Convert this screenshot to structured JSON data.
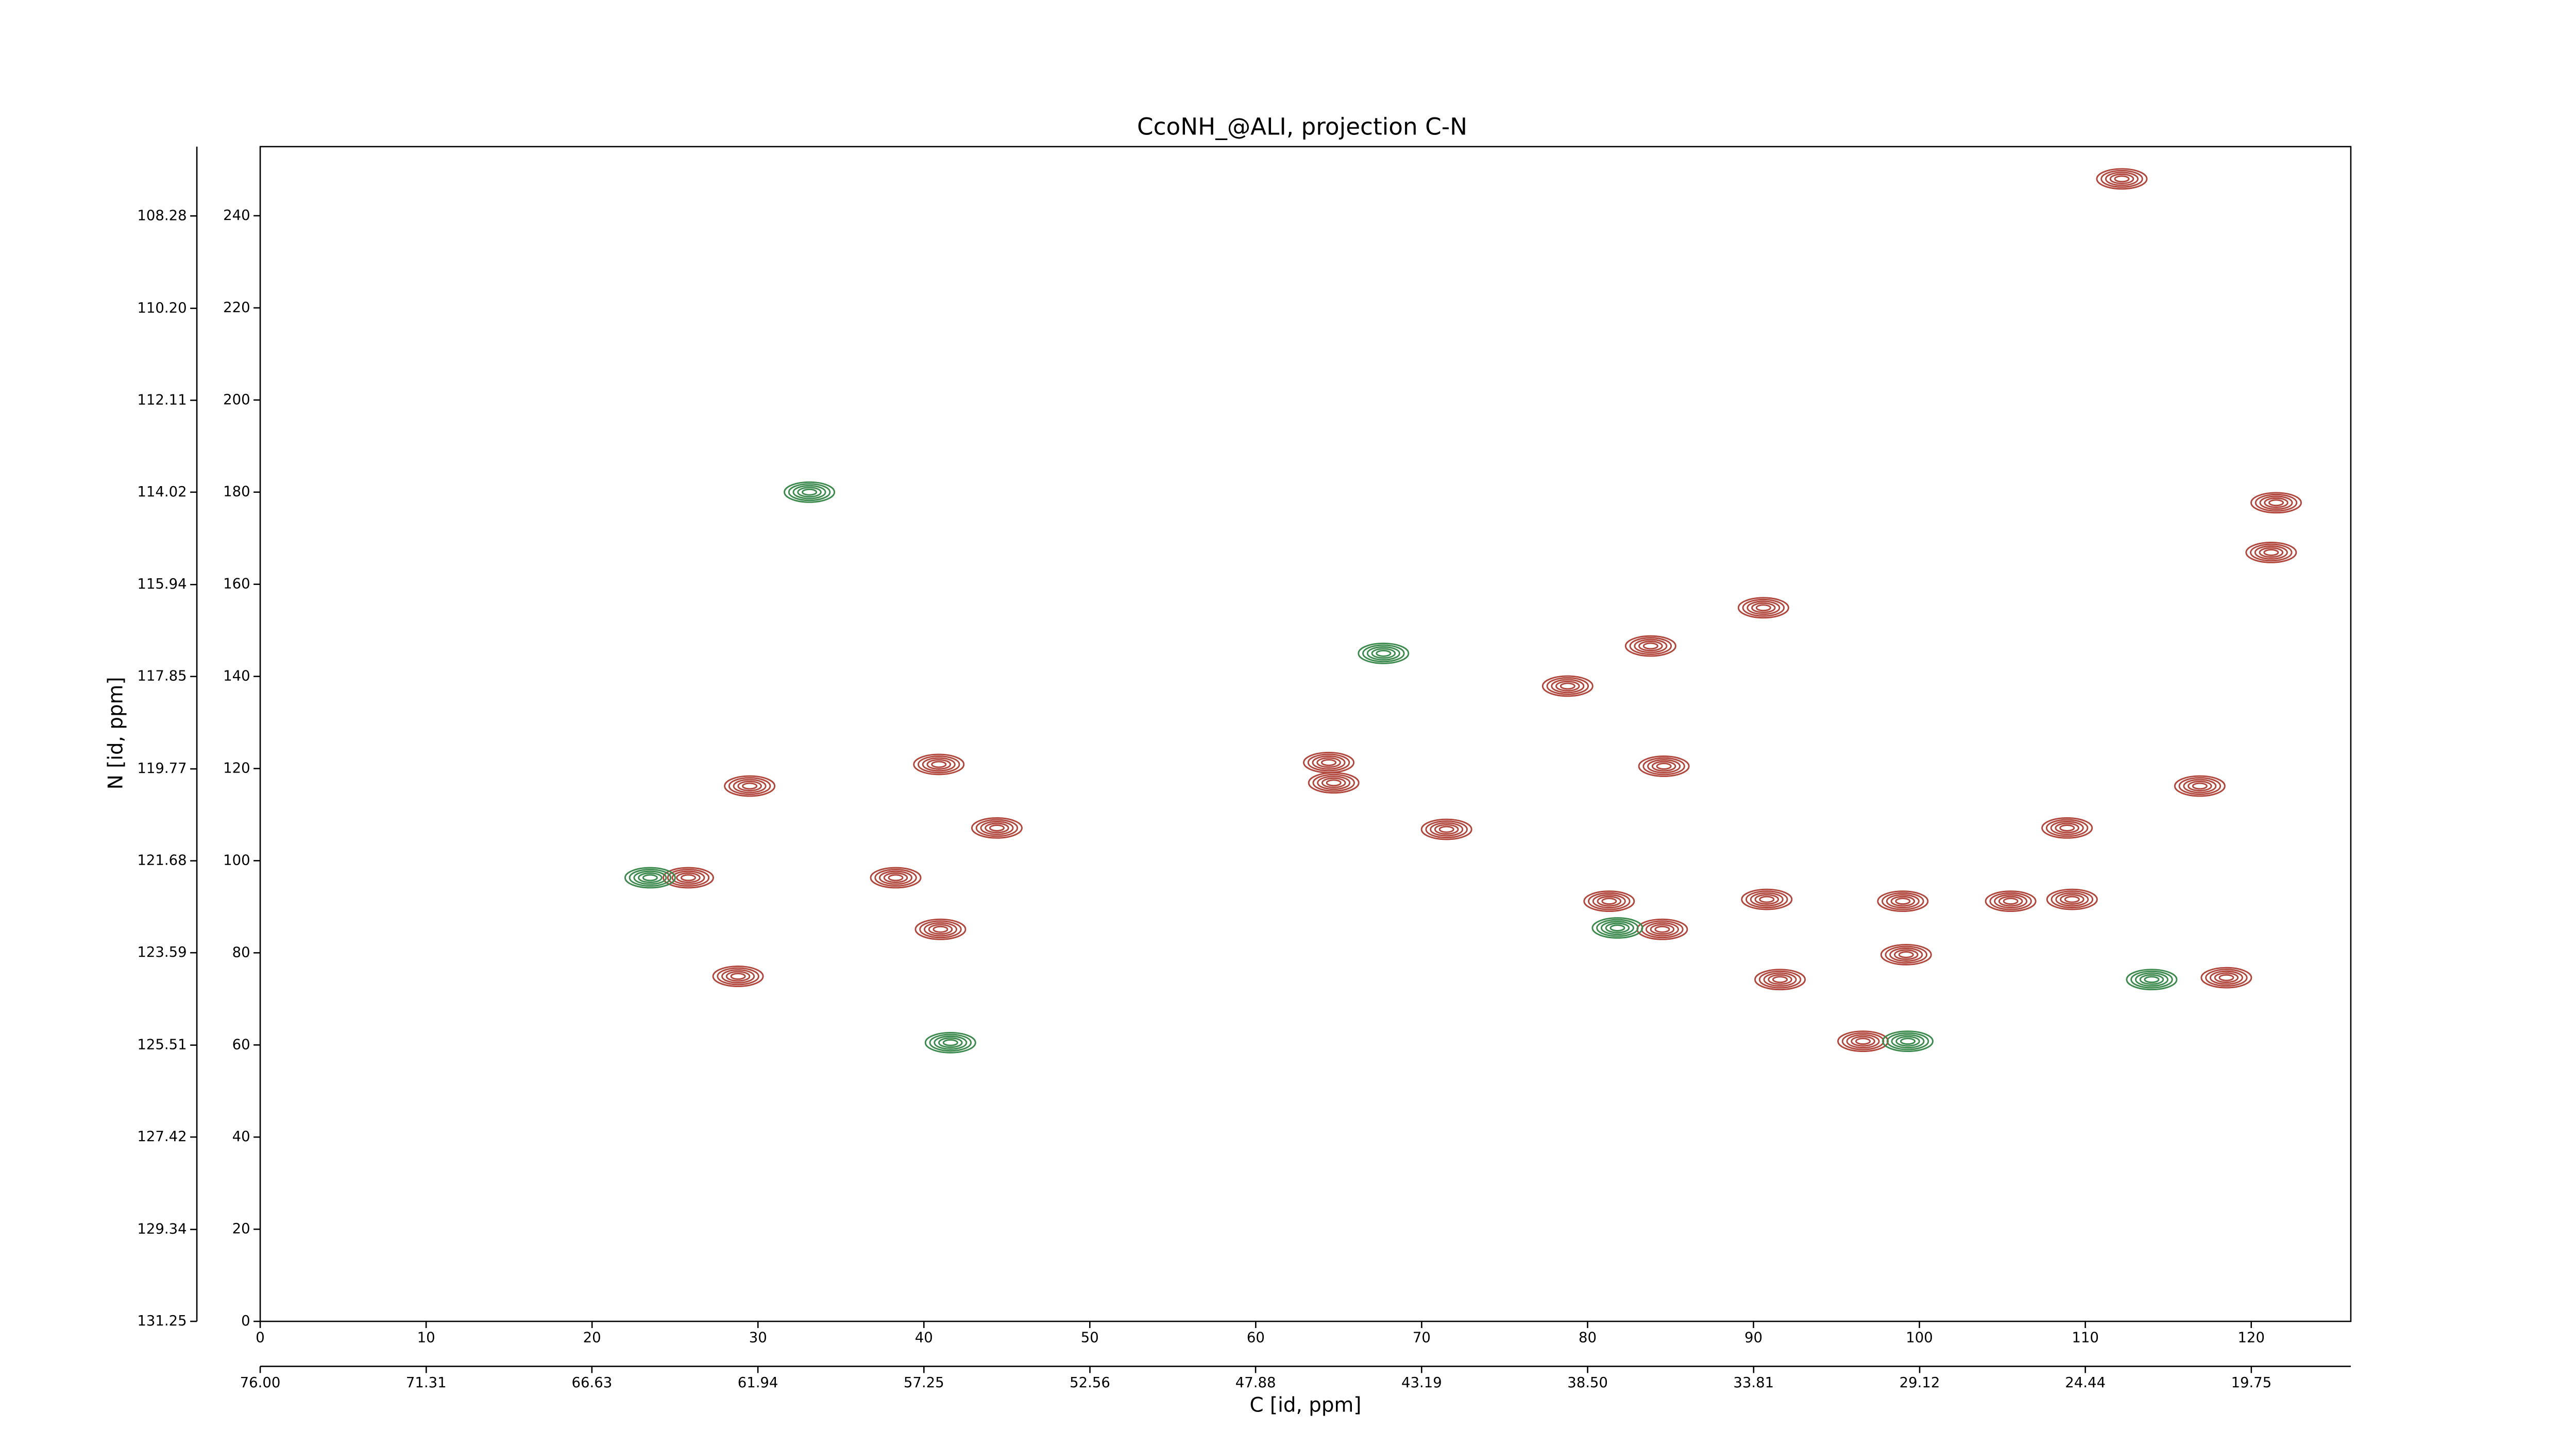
{
  "chart_data": {
    "type": "contour",
    "title": "CcoNH_@ALI, projection C-N",
    "x_label": "C [id, ppm]",
    "y_label": "N [id, ppm]",
    "xlim": [
      0,
      126
    ],
    "ylim": [
      0,
      255
    ],
    "xticks": [
      0,
      10,
      20,
      30,
      40,
      50,
      60,
      70,
      80,
      90,
      100,
      110,
      120
    ],
    "yticks": [
      0,
      20,
      40,
      60,
      80,
      100,
      120,
      140,
      160,
      180,
      200,
      220,
      240
    ],
    "x2lim": [
      76,
      16.94
    ],
    "x2ticks": [
      {
        "value": 76,
        "label": "76.00"
      },
      71.31,
      66.63,
      61.94,
      57.25,
      52.56,
      47.88,
      43.19,
      {
        "value": 38.5,
        "label": "38.50"
      },
      33.81,
      29.12,
      24.44,
      19.75
    ],
    "y2lim": [
      131.25,
      106.84
    ],
    "y2ticks": [
      131.25,
      129.34,
      127.42,
      125.51,
      123.59,
      121.68,
      119.77,
      117.85,
      115.94,
      114.02,
      112.11,
      {
        "value": 110.2,
        "label": "110.20"
      },
      108.28
    ],
    "series": [
      {
        "color": "#b0463c",
        "x": [
          25.8,
          28.8,
          29.5,
          38.3,
          40.9,
          41.0,
          44.4,
          64.4,
          64.7,
          71.5,
          84.6,
          84.5,
          81.3,
          90.6,
          90.8,
          91.6,
          96.6,
          99.0,
          99.2,
          105.5,
          109.2,
          108.9,
          116.9,
          118.5,
          121.5,
          121.2,
          78.8,
          83.8,
          112.2
        ],
        "y": [
          96.3,
          74.9,
          116.2,
          96.3,
          120.9,
          85.1,
          107.1,
          121.3,
          116.9,
          106.8,
          120.5,
          85.1,
          91.2,
          154.9,
          91.6,
          74.2,
          60.8,
          91.2,
          79.6,
          91.2,
          91.6,
          107.1,
          116.2,
          74.6,
          177.7,
          166.9,
          137.9,
          146.6,
          248.0
        ]
      },
      {
        "color": "#3d8a4e",
        "x": [
          41.6,
          23.5,
          114.0,
          99.3,
          81.8,
          33.1,
          67.7
        ],
        "y": [
          60.5,
          96.3,
          74.2,
          60.8,
          85.4,
          180.0,
          145.0
        ]
      }
    ]
  }
}
